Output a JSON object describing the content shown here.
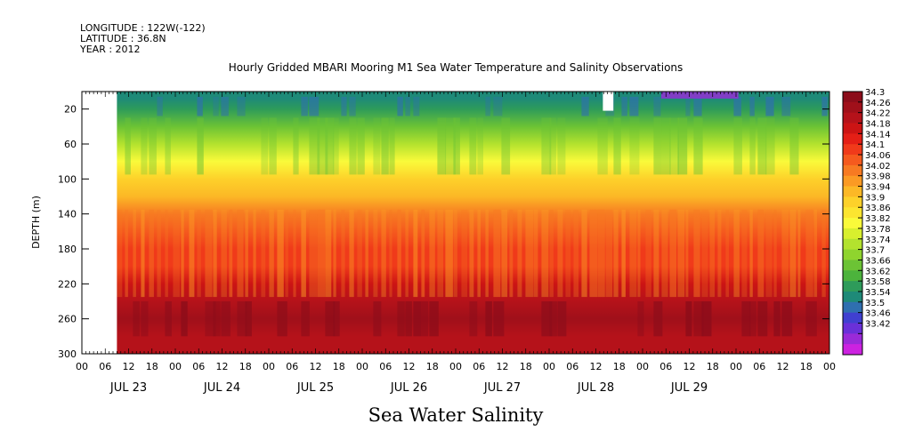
{
  "header": {
    "longitude": "LONGITUDE : 122W(-122)",
    "latitude": "LATITUDE : 36.8N",
    "year": "YEAR : 2012"
  },
  "chart_data": {
    "type": "heatmap",
    "title": "Hourly Gridded MBARI Mooring M1 Sea Water Temperature and Salinity Observations",
    "bottom_title": "Sea Water Salinity",
    "ylabel": "DEPTH (m)",
    "ylim": [
      300,
      0
    ],
    "y_ticks": [
      20,
      60,
      100,
      140,
      180,
      220,
      260,
      300
    ],
    "x_hour_ticks": [
      "00",
      "06",
      "12",
      "18",
      "00",
      "06",
      "12",
      "18",
      "00",
      "06",
      "12",
      "18",
      "00",
      "06",
      "12",
      "18",
      "00",
      "06",
      "12",
      "18",
      "00",
      "06",
      "12",
      "18",
      "00",
      "06",
      "12",
      "18",
      "00",
      "06",
      "12",
      "18",
      "00"
    ],
    "x_day_labels": [
      "JUL 23",
      "JUL 24",
      "JUL 25",
      "JUL 26",
      "JUL 27",
      "JUL 28",
      "JUL 29"
    ],
    "colorbar_levels": [
      "34.3",
      "34.26",
      "34.22",
      "34.18",
      "34.14",
      "34.1",
      "34.06",
      "34.02",
      "33.98",
      "33.94",
      "33.9",
      "33.86",
      "33.82",
      "33.78",
      "33.74",
      "33.7",
      "33.66",
      "33.62",
      "33.58",
      "33.54",
      "33.5",
      "33.46",
      "33.42"
    ],
    "colorbar_colors": [
      "#8c0d1a",
      "#a0101a",
      "#b5121a",
      "#cc1414",
      "#e41f16",
      "#f03a1a",
      "#f55a1e",
      "#f77a22",
      "#fb9a24",
      "#fcb826",
      "#fdd12a",
      "#fce530",
      "#fafa3a",
      "#d8ef2e",
      "#b3e22e",
      "#8fd42e",
      "#6cc335",
      "#4cb33c",
      "#2e9b5a",
      "#1e8a78",
      "#2f6fb0",
      "#4040d0",
      "#6a30d8",
      "#9a2ad8",
      "#cc22e0"
    ],
    "depth_profile": [
      {
        "depth": 8,
        "value": 33.62
      },
      {
        "depth": 20,
        "value": 33.64
      },
      {
        "depth": 40,
        "value": 33.72
      },
      {
        "depth": 60,
        "value": 33.79
      },
      {
        "depth": 80,
        "value": 33.85
      },
      {
        "depth": 100,
        "value": 33.92
      },
      {
        "depth": 120,
        "value": 33.98
      },
      {
        "depth": 140,
        "value": 34.05
      },
      {
        "depth": 160,
        "value": 34.09
      },
      {
        "depth": 180,
        "value": 34.1
      },
      {
        "depth": 200,
        "value": 34.13
      },
      {
        "depth": 220,
        "value": 34.19
      },
      {
        "depth": 240,
        "value": 34.24
      },
      {
        "depth": 260,
        "value": 34.27
      },
      {
        "depth": 280,
        "value": 34.23
      },
      {
        "depth": 300,
        "value": 34.21
      }
    ],
    "data_start": "JUL 23 09:00",
    "missing_block": "JUL 28 ~11:00, depth < 25 m"
  }
}
